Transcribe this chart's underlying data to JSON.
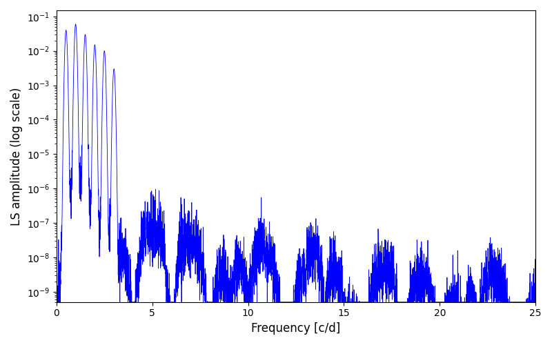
{
  "xlabel": "Frequency [c/d]",
  "ylabel": "LS amplitude (log scale)",
  "line_color": "#0000ff",
  "line_width": 0.6,
  "xmin": 0,
  "xmax": 25,
  "ymin": 5e-10,
  "ymax": 0.15,
  "yscale": "log",
  "fig_width": 8.0,
  "fig_height": 5.0,
  "dpi": 100,
  "background_color": "#ffffff",
  "num_points": 5000,
  "seed": 12345
}
